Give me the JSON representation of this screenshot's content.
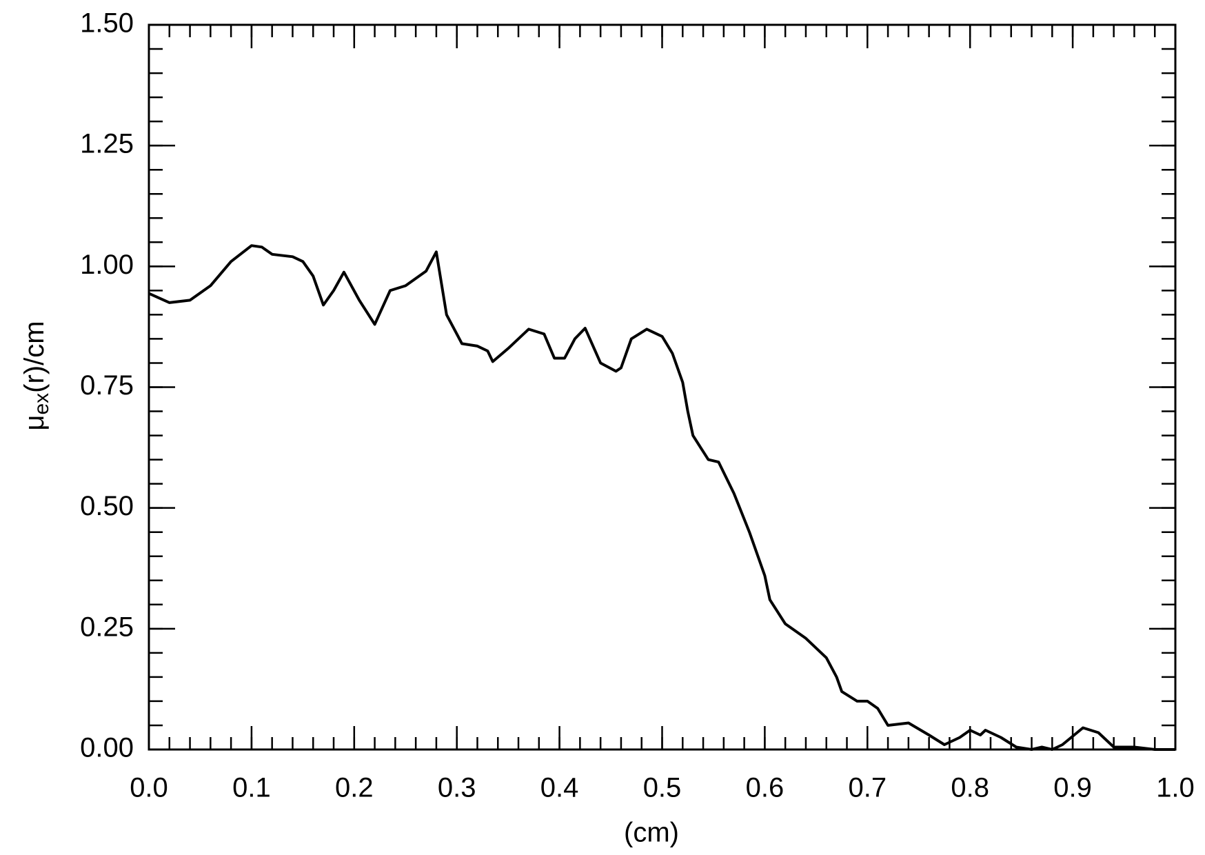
{
  "chart_data": {
    "type": "line",
    "xlabel": "(cm)",
    "ylabel": {
      "symbol": "μ",
      "subscript": "ex",
      "rest": "(r)/cm"
    },
    "xlim": [
      0,
      1
    ],
    "ylim": [
      0,
      1.5
    ],
    "xticks": [
      {
        "value": 0,
        "label": "0.0"
      },
      0.1,
      0.2,
      0.3,
      0.4,
      0.5,
      0.6,
      0.7,
      0.8,
      0.9,
      {
        "value": 1,
        "label": "1.0"
      }
    ],
    "yticks": [
      {
        "value": 0,
        "label": "0.00"
      },
      {
        "value": 0.25,
        "label": "0.25"
      },
      {
        "value": 0.5,
        "label": "0.50"
      },
      {
        "value": 0.75,
        "label": "0.75"
      },
      {
        "value": 1,
        "label": "1.00"
      },
      {
        "value": 1.25,
        "label": "1.25"
      },
      {
        "value": 1.5,
        "label": "1.50"
      }
    ],
    "xminor": 0.02,
    "yminor": 0.05,
    "series": [
      {
        "color": "#000000",
        "x": [
          0,
          0.02,
          0.04,
          0.06,
          0.08,
          0.1,
          0.11,
          0.12,
          0.14,
          0.15,
          0.16,
          0.17,
          0.18,
          0.19,
          0.205,
          0.22,
          0.235,
          0.25,
          0.27,
          0.28,
          0.29,
          0.3,
          0.305,
          0.32,
          0.33,
          0.335,
          0.35,
          0.37,
          0.385,
          0.395,
          0.405,
          0.415,
          0.425,
          0.44,
          0.455,
          0.46,
          0.47,
          0.485,
          0.5,
          0.51,
          0.52,
          0.525,
          0.53,
          0.545,
          0.555,
          0.57,
          0.585,
          0.6,
          0.605,
          0.62,
          0.64,
          0.66,
          0.67,
          0.675,
          0.69,
          0.7,
          0.71,
          0.72,
          0.74,
          0.76,
          0.775,
          0.79,
          0.8,
          0.81,
          0.815,
          0.83,
          0.845,
          0.86,
          0.87,
          0.88,
          0.89,
          0.91,
          0.925,
          0.94,
          0.96,
          0.98,
          1.0
        ],
        "values": [
          0.944,
          0.925,
          0.93,
          0.96,
          1.01,
          1.043,
          1.04,
          1.025,
          1.02,
          1.01,
          0.98,
          0.92,
          0.95,
          0.988,
          0.93,
          0.88,
          0.95,
          0.96,
          0.99,
          1.03,
          0.9,
          0.86,
          0.84,
          0.835,
          0.825,
          0.803,
          0.83,
          0.87,
          0.86,
          0.81,
          0.81,
          0.85,
          0.872,
          0.8,
          0.783,
          0.79,
          0.85,
          0.87,
          0.855,
          0.82,
          0.76,
          0.7,
          0.65,
          0.6,
          0.595,
          0.53,
          0.45,
          0.36,
          0.31,
          0.26,
          0.23,
          0.19,
          0.15,
          0.12,
          0.1,
          0.1,
          0.085,
          0.05,
          0.055,
          0.03,
          0.01,
          0.025,
          0.04,
          0.03,
          0.04,
          0.025,
          0.005,
          0,
          0.005,
          0,
          0.01,
          0.045,
          0.035,
          0.005,
          0.005,
          0,
          0
        ]
      }
    ]
  }
}
